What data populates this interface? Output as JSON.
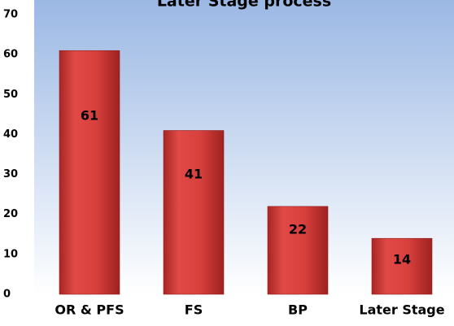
{
  "chart_data": {
    "type": "bar",
    "title": "Later Stage process",
    "categories": [
      "OR & PFS",
      "FS",
      "BP",
      "Later Stage"
    ],
    "values": [
      61,
      41,
      22,
      14
    ],
    "color": "#d43c3a",
    "ylim": [
      0,
      70
    ],
    "yticks": [
      0,
      10,
      20,
      30,
      40,
      50,
      60,
      70
    ],
    "data_labels": true
  }
}
